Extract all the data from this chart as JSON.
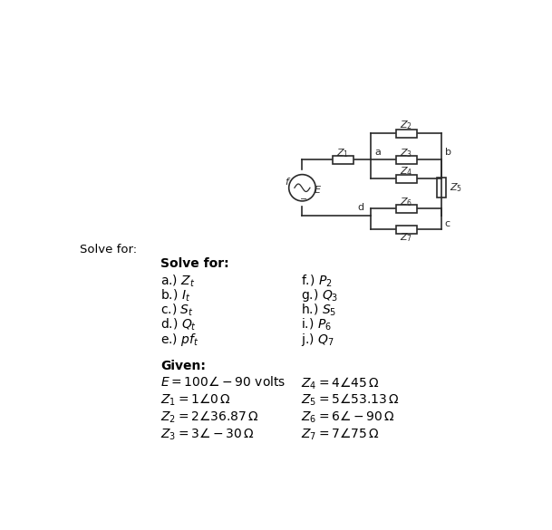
{
  "background_color": "#ffffff",
  "solve_for_label_topleft": "Solve for:",
  "section_title": "Solve for:",
  "col1_items": [
    "a.) $Z_t$",
    "b.) $I_t$",
    "c.) $S_t$",
    "d.) $Q_t$",
    "e.) $pf_t$"
  ],
  "col2_items": [
    "f.) $P_2$",
    "g.) $Q_3$",
    "h.) $S_5$",
    "i.) $P_6$",
    "j.) $Q_7$"
  ],
  "given_title": "Given:",
  "given_col1": [
    "$E = 100\\angle-90$ volts",
    "$Z_1 = 1\\angle0\\,\\Omega$",
    "$Z_2 = 2\\angle36.87\\,\\Omega$",
    "$Z_3 = 3\\angle-30\\,\\Omega$"
  ],
  "given_col2": [
    "$Z_4 = 4\\angle45\\,\\Omega$",
    "$Z_5 = 5\\angle53.13\\,\\Omega$",
    "$Z_6 = 6\\angle-90\\,\\Omega$",
    "$Z_7 = 7\\angle75\\,\\Omega$"
  ]
}
